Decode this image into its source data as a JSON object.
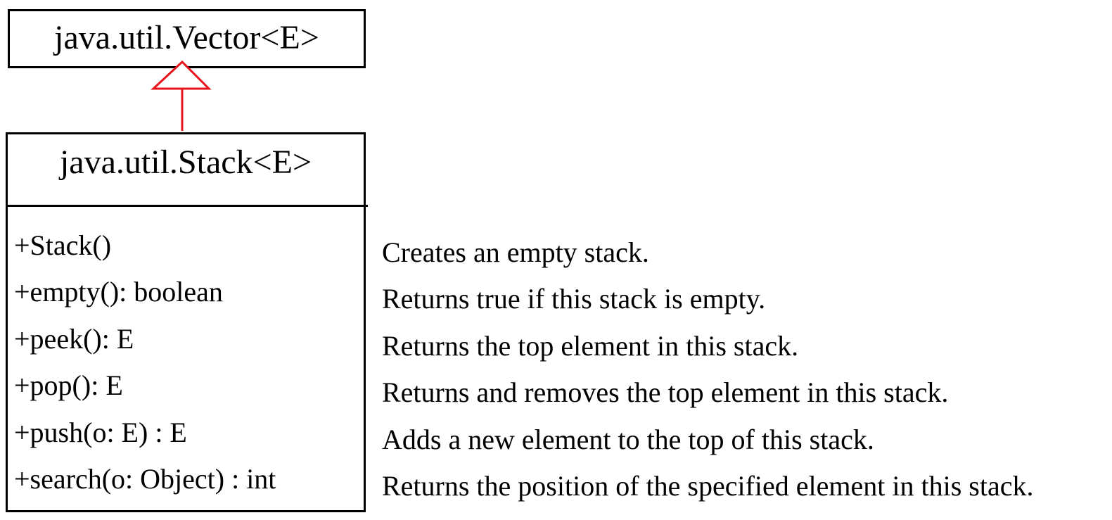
{
  "superclass": {
    "name": "java.util.Vector<E>"
  },
  "class": {
    "name": "java.util.Stack<E>",
    "methods": [
      {
        "signature": "+Stack()",
        "description": "Creates an empty stack."
      },
      {
        "signature": "+empty(): boolean",
        "description": "Returns true if this stack is empty."
      },
      {
        "signature": "+peek(): E",
        "description": "Returns the top element in this stack."
      },
      {
        "signature": "+pop(): E",
        "description": "Returns and removes the top element in this stack."
      },
      {
        "signature": "+push(o: E) : E",
        "description": "Adds a new element to the top of this stack."
      },
      {
        "signature": "+search(o: Object) : int",
        "description": "Returns the position of the specified element in this stack."
      }
    ]
  },
  "colors": {
    "inheritance_arrow": "#e8141c",
    "border": "#000000"
  }
}
